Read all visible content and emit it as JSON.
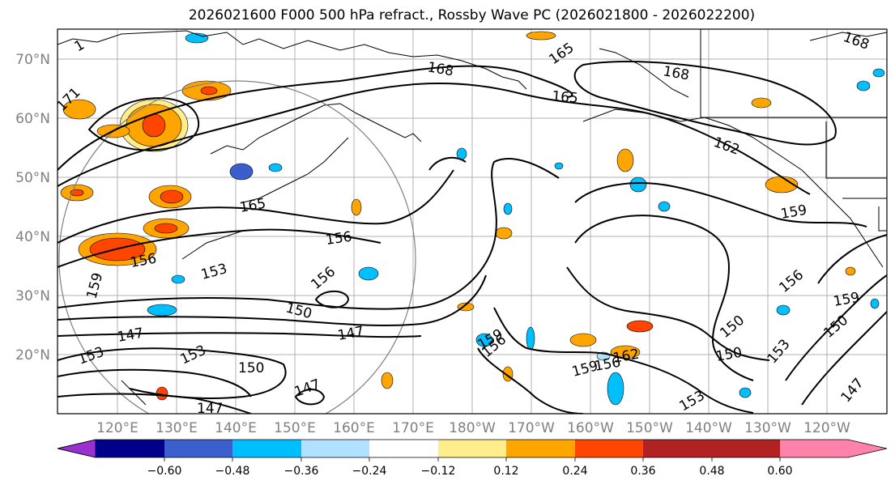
{
  "title": "2026021600 F000 500 hPa refract., Rossby Wave PC (2026021800 - 2026022200)",
  "map": {
    "lon_ticks": [
      "120°E",
      "130°E",
      "140°E",
      "150°E",
      "160°E",
      "170°E",
      "180°W",
      "170°W",
      "160°W",
      "150°W",
      "140°W",
      "130°W",
      "120°W"
    ],
    "lat_ticks": [
      "70°N",
      "60°N",
      "50°N",
      "40°N",
      "30°N",
      "20°N"
    ]
  },
  "contour_labels": [
    {
      "text": "1"
    },
    {
      "text": "171"
    },
    {
      "text": "168"
    },
    {
      "text": "165"
    },
    {
      "text": "168"
    },
    {
      "text": "165"
    },
    {
      "text": "168"
    },
    {
      "text": "162"
    },
    {
      "text": "165"
    },
    {
      "text": "156"
    },
    {
      "text": "156"
    },
    {
      "text": "153"
    },
    {
      "text": "159"
    },
    {
      "text": "156"
    },
    {
      "text": "150"
    },
    {
      "text": "147"
    },
    {
      "text": "147"
    },
    {
      "text": "153"
    },
    {
      "text": "153"
    },
    {
      "text": "150"
    },
    {
      "text": "147"
    },
    {
      "text": "147"
    },
    {
      "text": "159"
    },
    {
      "text": "159"
    },
    {
      "text": "156"
    },
    {
      "text": "162"
    },
    {
      "text": "159"
    },
    {
      "text": "150"
    },
    {
      "text": "150"
    },
    {
      "text": "153"
    },
    {
      "text": "153"
    },
    {
      "text": "156"
    },
    {
      "text": "150"
    },
    {
      "text": "147"
    },
    {
      "text": "159"
    },
    {
      "text": "156"
    }
  ],
  "colorbar": {
    "colors": [
      "#9b30d0",
      "#00008b",
      "#3a5fcd",
      "#00bfff",
      "#b0e2ff",
      "#ffffff",
      "#ffec8b",
      "#ffa500",
      "#ff4500",
      "#b22222",
      "#ff82ab"
    ],
    "labels": [
      "−0.60",
      "−0.48",
      "−0.36",
      "−0.24",
      "−0.12",
      "0.12",
      "0.24",
      "0.36",
      "0.48",
      "0.60"
    ]
  }
}
